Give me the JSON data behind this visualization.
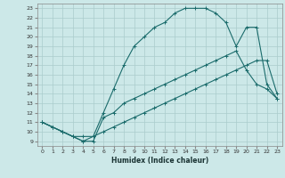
{
  "xlabel": "Humidex (Indice chaleur)",
  "background_color": "#cce8e8",
  "grid_color": "#aacccc",
  "line_color": "#1a6b6b",
  "xlim": [
    -0.5,
    23.5
  ],
  "ylim": [
    8.5,
    23.5
  ],
  "xticks": [
    0,
    1,
    2,
    3,
    4,
    5,
    6,
    7,
    8,
    9,
    10,
    11,
    12,
    13,
    14,
    15,
    16,
    17,
    18,
    19,
    20,
    21,
    22,
    23
  ],
  "yticks": [
    9,
    10,
    11,
    12,
    13,
    14,
    15,
    16,
    17,
    18,
    19,
    20,
    21,
    22,
    23
  ],
  "line1_x": [
    0,
    1,
    2,
    3,
    4,
    5,
    6,
    7,
    8,
    9,
    10,
    11,
    12,
    13,
    14,
    15,
    16,
    17,
    18,
    19,
    20,
    21,
    22,
    23
  ],
  "line1_y": [
    11,
    10.5,
    10,
    9.5,
    9.5,
    9.5,
    10,
    10.5,
    11,
    11.5,
    12,
    12.5,
    13,
    13.5,
    14,
    14.5,
    15,
    15.5,
    16,
    16.5,
    17,
    17.5,
    17.5,
    14
  ],
  "line2_x": [
    0,
    1,
    2,
    3,
    4,
    5,
    6,
    7,
    8,
    9,
    10,
    11,
    12,
    13,
    14,
    15,
    16,
    17,
    18,
    19,
    20,
    21,
    22,
    23
  ],
  "line2_y": [
    11,
    10.5,
    10,
    9.5,
    9,
    9.5,
    12.0,
    14.5,
    17,
    19,
    20,
    21,
    21.5,
    22.5,
    23,
    23,
    23,
    22.5,
    21.5,
    19,
    21,
    21,
    15,
    13.5
  ],
  "line3_x": [
    0,
    1,
    2,
    3,
    4,
    5,
    6,
    7,
    8,
    9,
    10,
    11,
    12,
    13,
    14,
    15,
    16,
    17,
    18,
    19,
    20,
    21,
    22,
    23
  ],
  "line3_y": [
    11,
    10.5,
    10,
    9.5,
    9,
    9,
    11.5,
    12,
    13,
    13.5,
    14,
    14.5,
    15,
    15.5,
    16,
    16.5,
    17,
    17.5,
    18,
    18.5,
    16.5,
    15,
    14.5,
    13.5
  ]
}
